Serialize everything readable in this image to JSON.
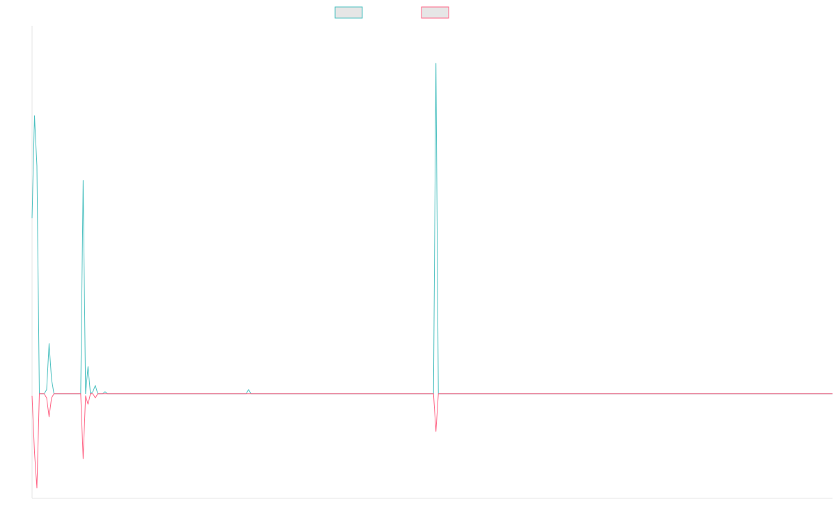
{
  "chart_data": {
    "type": "line",
    "title": "",
    "xlabel": "",
    "ylabel": "",
    "grid": false,
    "legend_position": "top-center",
    "xlim": [
      0,
      329
    ],
    "ylim": [
      -50,
      176
    ],
    "series": [
      {
        "color": "#4bc0c0",
        "points": [
          [
            0,
            84
          ],
          [
            1,
            133
          ],
          [
            2,
            109
          ],
          [
            3,
            0
          ],
          [
            4,
            0
          ],
          [
            5,
            0
          ],
          [
            6,
            2
          ],
          [
            7,
            24
          ],
          [
            8,
            7
          ],
          [
            9,
            0
          ],
          [
            10,
            0
          ],
          [
            11,
            0
          ],
          [
            12,
            0
          ],
          [
            20,
            0
          ],
          [
            21,
            102
          ],
          [
            22,
            0
          ],
          [
            23,
            13
          ],
          [
            24,
            0
          ],
          [
            25,
            1
          ],
          [
            26,
            4
          ],
          [
            27,
            0
          ],
          [
            28,
            0
          ],
          [
            29,
            0
          ],
          [
            30,
            1
          ],
          [
            31,
            0
          ],
          [
            60,
            0
          ],
          [
            88,
            0
          ],
          [
            89,
            2
          ],
          [
            90,
            0
          ],
          [
            164,
            0
          ],
          [
            165,
            0
          ],
          [
            166,
            158
          ],
          [
            167,
            0
          ],
          [
            168,
            0
          ],
          [
            329,
            0
          ]
        ]
      },
      {
        "color": "#ff6384",
        "points": [
          [
            0,
            -1
          ],
          [
            1,
            -28
          ],
          [
            2,
            -45
          ],
          [
            3,
            0
          ],
          [
            4,
            0
          ],
          [
            5,
            0
          ],
          [
            6,
            -2
          ],
          [
            7,
            -11
          ],
          [
            8,
            -2
          ],
          [
            9,
            0
          ],
          [
            10,
            0
          ],
          [
            11,
            0
          ],
          [
            12,
            0
          ],
          [
            20,
            0
          ],
          [
            21,
            -31
          ],
          [
            22,
            -1
          ],
          [
            23,
            -5
          ],
          [
            24,
            0
          ],
          [
            25,
            0
          ],
          [
            26,
            -2
          ],
          [
            27,
            0
          ],
          [
            28,
            0
          ],
          [
            29,
            0
          ],
          [
            30,
            0
          ],
          [
            31,
            0
          ],
          [
            88,
            0
          ],
          [
            89,
            0
          ],
          [
            90,
            0
          ],
          [
            164,
            0
          ],
          [
            165,
            0
          ],
          [
            166,
            -18
          ],
          [
            167,
            0
          ],
          [
            168,
            0
          ],
          [
            329,
            0
          ]
        ]
      }
    ]
  }
}
